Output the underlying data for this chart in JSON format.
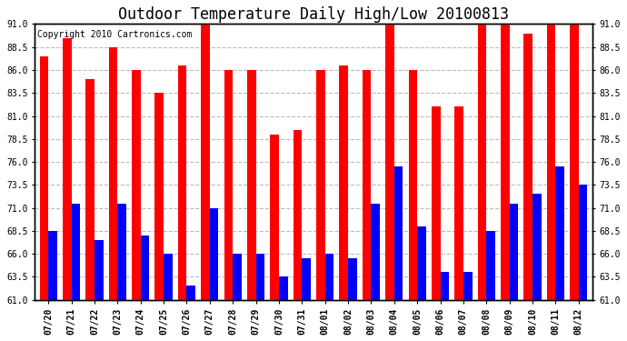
{
  "title": "Outdoor Temperature Daily High/Low 20100813",
  "copyright": "Copyright 2010 Cartronics.com",
  "dates": [
    "07/20",
    "07/21",
    "07/22",
    "07/23",
    "07/24",
    "07/25",
    "07/26",
    "07/27",
    "07/28",
    "07/29",
    "07/30",
    "07/31",
    "08/01",
    "08/02",
    "08/03",
    "08/04",
    "08/05",
    "08/06",
    "08/07",
    "08/08",
    "08/09",
    "08/10",
    "08/11",
    "08/12"
  ],
  "highs": [
    87.5,
    89.5,
    85.0,
    88.5,
    86.0,
    83.5,
    86.5,
    91.0,
    86.0,
    86.0,
    79.0,
    79.5,
    86.0,
    86.5,
    86.0,
    91.0,
    86.0,
    82.0,
    82.0,
    91.0,
    91.0,
    90.0,
    91.0,
    91.0
  ],
  "lows": [
    68.5,
    71.5,
    67.5,
    71.5,
    68.0,
    66.0,
    62.5,
    71.0,
    66.0,
    66.0,
    63.5,
    65.5,
    66.0,
    65.5,
    71.5,
    75.5,
    69.0,
    64.0,
    64.0,
    68.5,
    71.5,
    72.5,
    75.5,
    73.5
  ],
  "high_color": "#FF0000",
  "low_color": "#0000FF",
  "background_color": "#FFFFFF",
  "grid_color": "#BBBBBB",
  "ylim_min": 61.0,
  "ylim_max": 91.0,
  "yticks": [
    61.0,
    63.5,
    66.0,
    68.5,
    71.0,
    73.5,
    76.0,
    78.5,
    81.0,
    83.5,
    86.0,
    88.5,
    91.0
  ],
  "bar_width": 0.38,
  "title_fontsize": 12,
  "tick_fontsize": 7,
  "copyright_fontsize": 7
}
